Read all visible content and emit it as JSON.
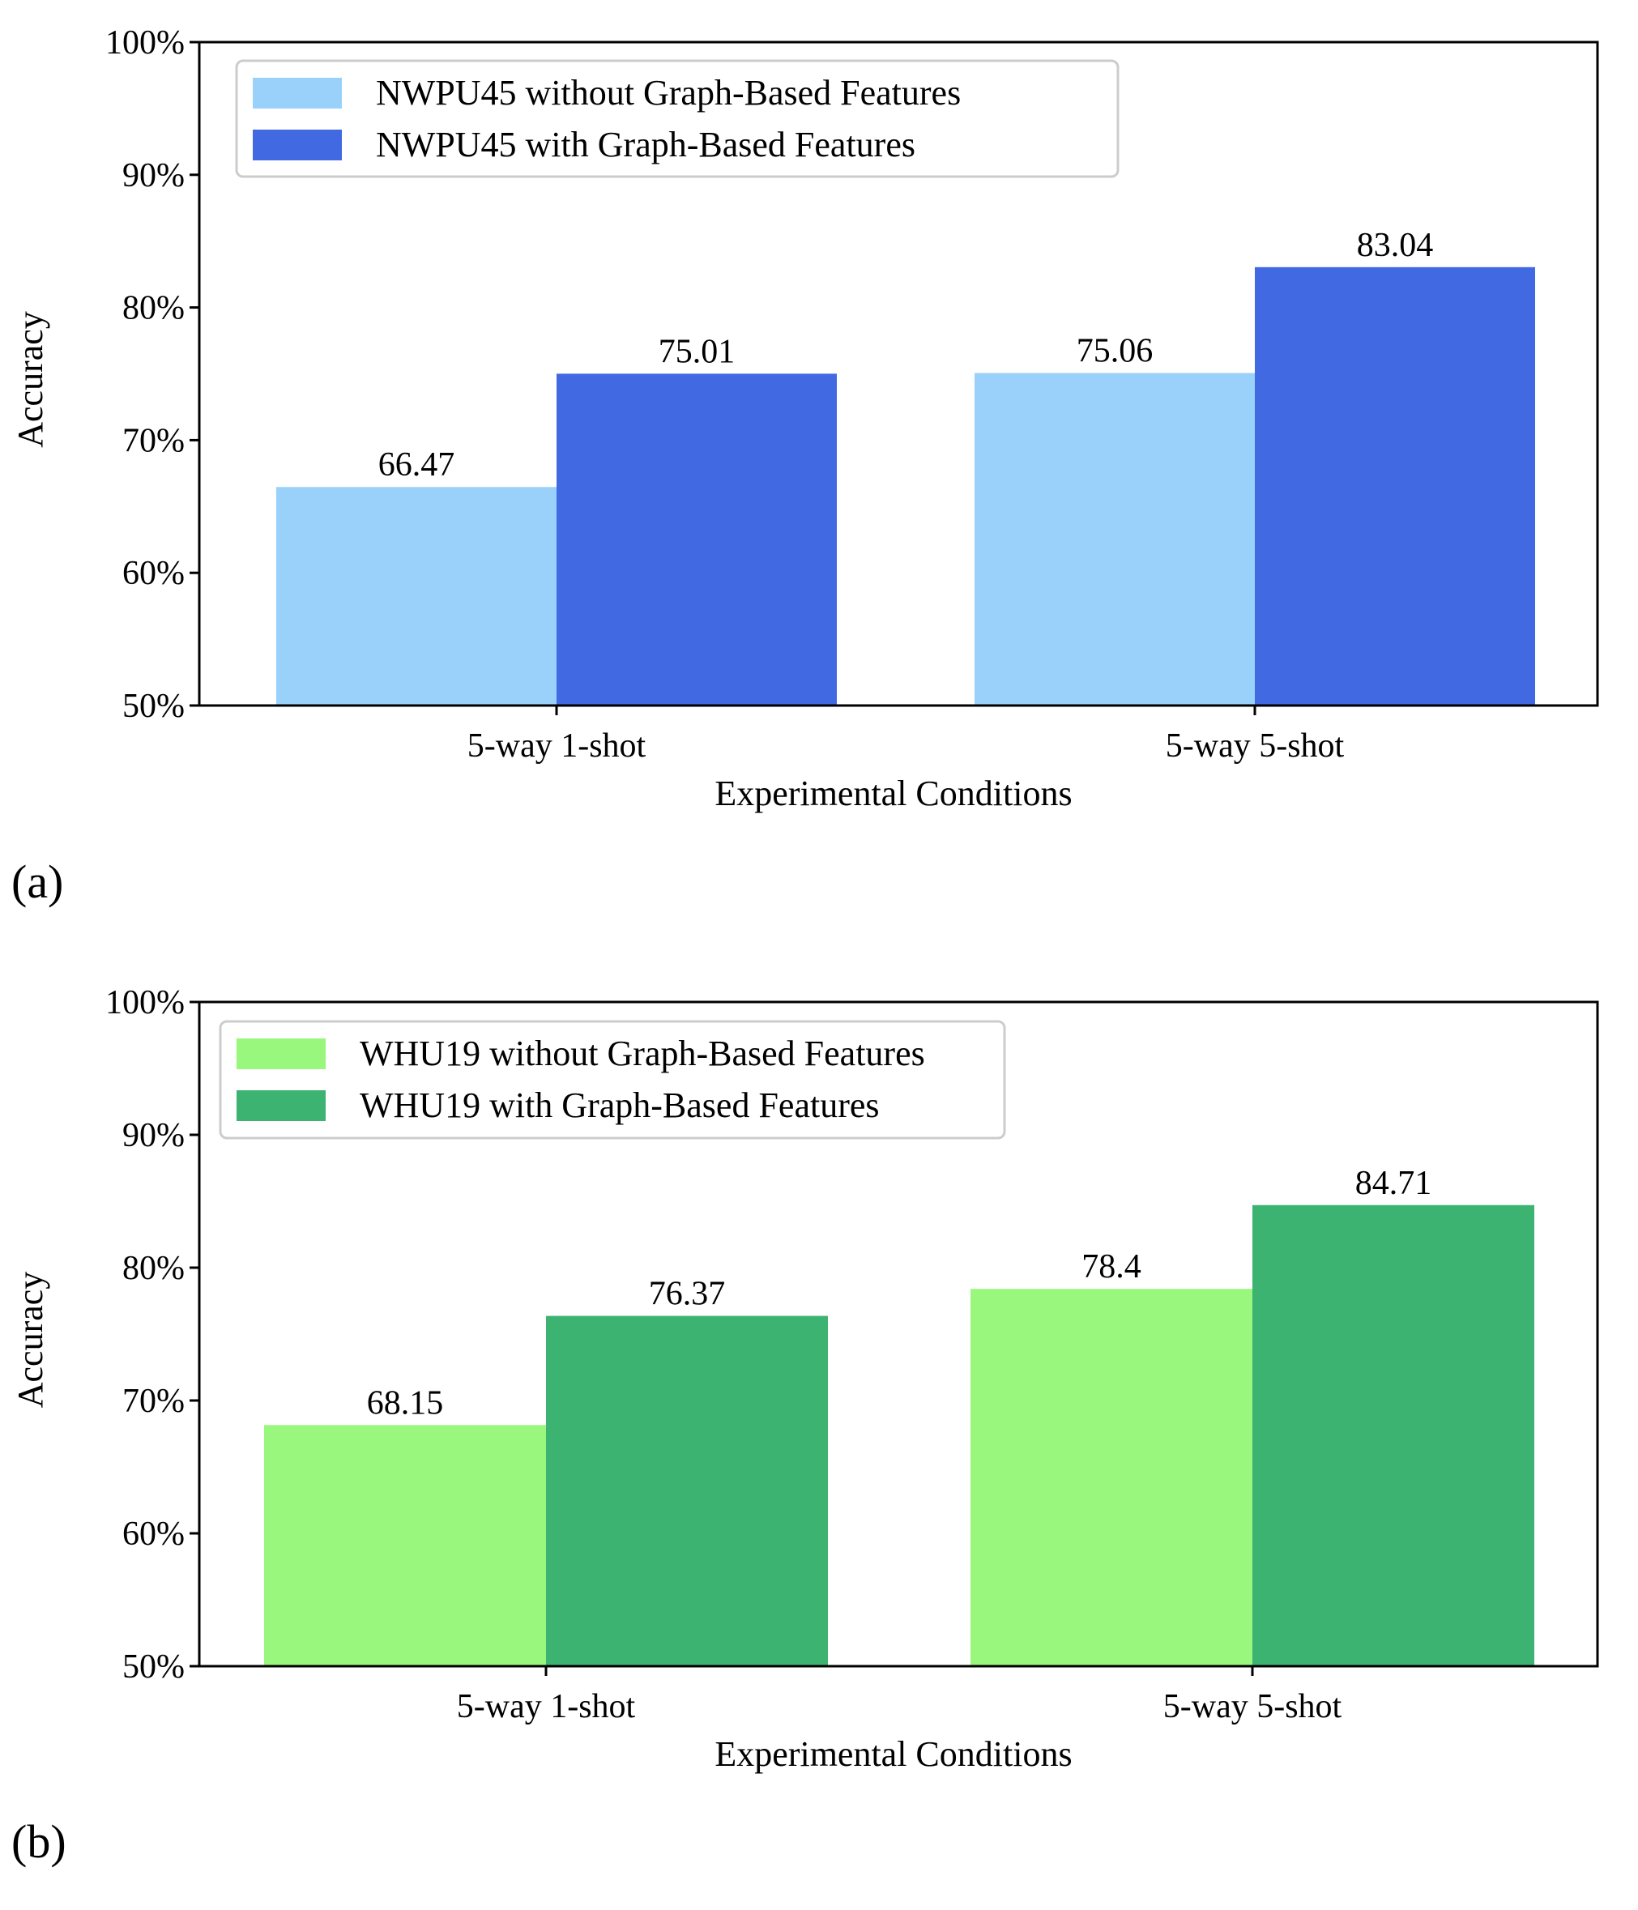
{
  "figure": {
    "panels": [
      "(a)",
      "(b)"
    ]
  },
  "chart_data": [
    {
      "type": "bar",
      "panel_label": "(a)",
      "categories": [
        "5-way 1-shot",
        "5-way 5-shot"
      ],
      "series": [
        {
          "name": "NWPU45 without Graph-Based Features",
          "values": [
            66.47,
            75.06
          ],
          "color": "#99d1fb"
        },
        {
          "name": "NWPU45 with Graph-Based Features",
          "values": [
            75.01,
            83.04
          ],
          "color": "#4169e1"
        }
      ],
      "data_labels": [
        [
          "66.47",
          "75.06"
        ],
        [
          "75.01",
          "83.04"
        ]
      ],
      "xlabel": "Experimental Conditions",
      "ylabel": "Accuracy",
      "ylim": [
        50,
        100
      ],
      "yticks": [
        50,
        60,
        70,
        80,
        90,
        100
      ],
      "ytick_labels": [
        "50%",
        "60%",
        "70%",
        "80%",
        "90%",
        "100%"
      ],
      "legend_position": "top-left",
      "grid": false
    },
    {
      "type": "bar",
      "panel_label": "(b)",
      "categories": [
        "5-way 1-shot",
        "5-way 5-shot"
      ],
      "series": [
        {
          "name": "WHU19 without Graph-Based Features",
          "values": [
            68.15,
            78.4
          ],
          "color": "#98f77c"
        },
        {
          "name": "WHU19 with Graph-Based Features",
          "values": [
            76.37,
            84.71
          ],
          "color": "#3cb371"
        }
      ],
      "data_labels": [
        [
          "68.15",
          "78.4"
        ],
        [
          "76.37",
          "84.71"
        ]
      ],
      "xlabel": "Experimental Conditions",
      "ylabel": "Accuracy",
      "ylim": [
        50,
        100
      ],
      "yticks": [
        50,
        60,
        70,
        80,
        90,
        100
      ],
      "ytick_labels": [
        "50%",
        "60%",
        "70%",
        "80%",
        "90%",
        "100%"
      ],
      "legend_position": "top-left",
      "grid": false
    }
  ]
}
